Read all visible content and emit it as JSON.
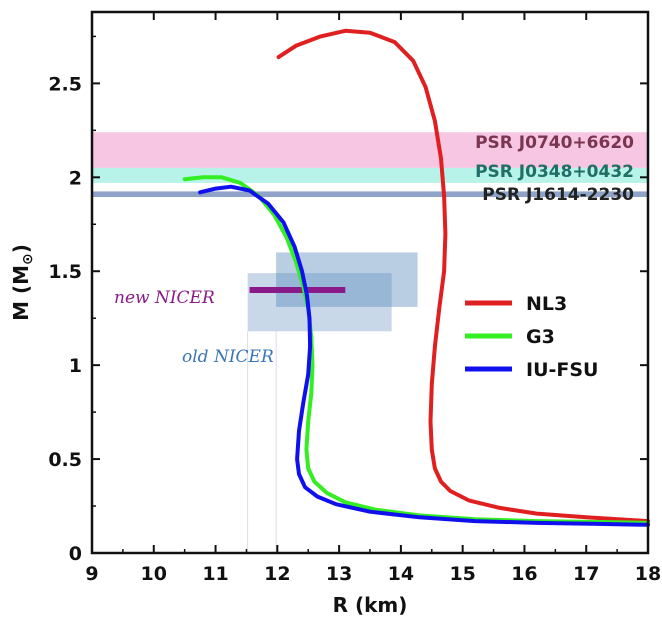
{
  "chart_data": {
    "type": "line",
    "xlabel": "R (km)",
    "ylabel_main": "M (M",
    "ylabel_sub": "⊙",
    "ylabel_close": ")",
    "xlim": [
      9,
      18
    ],
    "ylim": [
      0,
      2.88
    ],
    "xticks": [
      9,
      10,
      11,
      12,
      13,
      14,
      15,
      16,
      17,
      18
    ],
    "yticks": [
      0,
      0.5,
      1,
      1.5,
      2,
      2.5
    ],
    "yticklabels": [
      "0",
      "0.5",
      "1",
      "1.5",
      "2",
      "2.5"
    ],
    "grid": false,
    "legend_position": "center-right",
    "bands": [
      {
        "name": "PSR J0740+6620",
        "y_low": 2.05,
        "y_high": 2.24,
        "color": "#f7c6e2",
        "text_color": "#7a3550"
      },
      {
        "name": "PSR J0348+0432",
        "y_low": 1.97,
        "y_high": 2.05,
        "color": "#b8f3ea",
        "text_color": "#1f6f66"
      },
      {
        "name": "PSR J1614-2230",
        "y_low": 1.895,
        "y_high": 1.925,
        "color": "#8fa3c8",
        "text_color": "#222222"
      }
    ],
    "nicer": [
      {
        "name": "new NICER",
        "color": "#8a1a8a",
        "r_low": 11.55,
        "r_high": 13.1,
        "m": 1.4
      },
      {
        "name": "old NICER",
        "color": "#3a75b5"
      }
    ],
    "boxes": [
      {
        "r_low": 11.98,
        "r_high": 14.27,
        "m_low": 1.31,
        "m_high": 1.6,
        "color": "#4a7fb5",
        "opacity": 0.38
      },
      {
        "r_low": 11.52,
        "r_high": 13.85,
        "m_low": 1.18,
        "m_high": 1.49,
        "color": "#4a7fb5",
        "opacity": 0.3
      }
    ],
    "series": [
      {
        "name": "NL3",
        "color": "#e02020",
        "x": [
          12.02,
          12.3,
          12.7,
          13.1,
          13.5,
          13.9,
          14.2,
          14.4,
          14.55,
          14.65,
          14.7,
          14.72,
          14.7,
          14.62,
          14.55,
          14.5,
          14.48,
          14.5,
          14.55,
          14.65,
          14.8,
          15.1,
          15.6,
          16.2,
          17.0,
          18.0
        ],
        "y": [
          2.64,
          2.7,
          2.75,
          2.78,
          2.77,
          2.72,
          2.62,
          2.48,
          2.3,
          2.1,
          1.9,
          1.7,
          1.5,
          1.3,
          1.1,
          0.9,
          0.7,
          0.55,
          0.45,
          0.38,
          0.33,
          0.28,
          0.24,
          0.21,
          0.19,
          0.17
        ]
      },
      {
        "name": "G3",
        "color": "#33ee22",
        "x": [
          10.5,
          10.8,
          11.1,
          11.4,
          11.7,
          11.95,
          12.15,
          12.3,
          12.42,
          12.5,
          12.55,
          12.57,
          12.55,
          12.5,
          12.47,
          12.5,
          12.6,
          12.8,
          13.1,
          13.6,
          14.3,
          15.2,
          16.2,
          17.2,
          18.0
        ],
        "y": [
          1.99,
          2.0,
          2.0,
          1.97,
          1.9,
          1.8,
          1.68,
          1.55,
          1.42,
          1.3,
          1.15,
          1.0,
          0.85,
          0.7,
          0.55,
          0.45,
          0.38,
          0.32,
          0.27,
          0.23,
          0.2,
          0.18,
          0.17,
          0.165,
          0.16
        ]
      },
      {
        "name": "IU-FSU",
        "color": "#1010ee",
        "x": [
          10.75,
          11.0,
          11.25,
          11.55,
          11.85,
          12.1,
          12.28,
          12.4,
          12.48,
          12.52,
          12.53,
          12.5,
          12.42,
          12.35,
          12.32,
          12.35,
          12.45,
          12.65,
          12.95,
          13.5,
          14.3,
          15.2,
          16.2,
          17.2,
          18.0
        ],
        "y": [
          1.92,
          1.94,
          1.95,
          1.93,
          1.86,
          1.76,
          1.63,
          1.5,
          1.37,
          1.25,
          1.1,
          0.95,
          0.8,
          0.65,
          0.5,
          0.42,
          0.35,
          0.3,
          0.26,
          0.22,
          0.19,
          0.17,
          0.16,
          0.155,
          0.15
        ]
      }
    ]
  }
}
